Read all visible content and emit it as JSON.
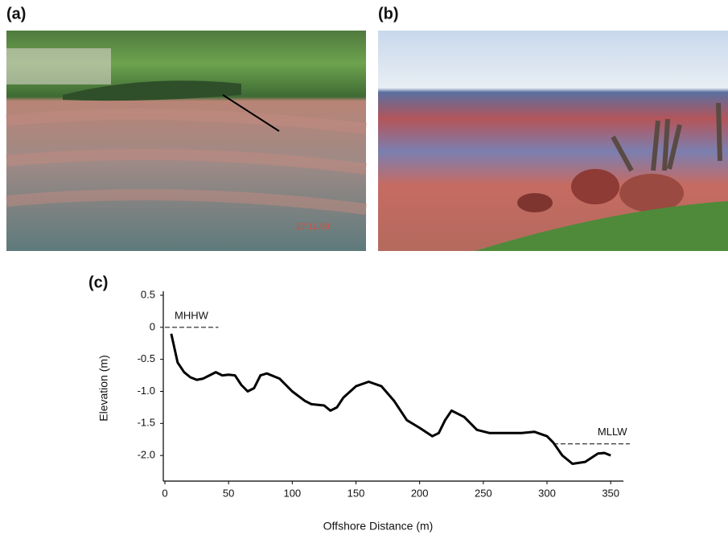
{
  "panels": {
    "a": "(a)",
    "b": "(b)",
    "c": "(c)"
  },
  "photo_a_stamp": "27.11.93",
  "chart_data": {
    "type": "line",
    "x_label": "Offshore Distance (m)",
    "y_label": "Elevation (m)",
    "x": [
      5,
      10,
      15,
      20,
      25,
      30,
      35,
      40,
      45,
      50,
      55,
      60,
      65,
      70,
      75,
      80,
      90,
      100,
      110,
      115,
      125,
      130,
      135,
      140,
      150,
      160,
      170,
      180,
      190,
      200,
      210,
      215,
      220,
      225,
      235,
      245,
      255,
      270,
      280,
      290,
      300,
      305,
      312,
      320,
      330,
      340,
      345,
      350
    ],
    "values": [
      -0.1,
      -0.55,
      -0.7,
      -0.78,
      -0.82,
      -0.8,
      -0.75,
      -0.7,
      -0.75,
      -0.74,
      -0.75,
      -0.9,
      -1.0,
      -0.95,
      -0.75,
      -0.72,
      -0.8,
      -1.0,
      -1.15,
      -1.2,
      -1.22,
      -1.3,
      -1.25,
      -1.1,
      -0.92,
      -0.85,
      -0.92,
      -1.15,
      -1.45,
      -1.57,
      -1.7,
      -1.65,
      -1.45,
      -1.3,
      -1.4,
      -1.6,
      -1.65,
      -1.65,
      -1.65,
      -1.63,
      -1.7,
      -1.8,
      -2.0,
      -2.13,
      -2.1,
      -1.97,
      -1.96,
      -2.0
    ],
    "color": "#000000",
    "xlim": [
      0,
      360
    ],
    "xticks": [
      0,
      50,
      100,
      150,
      200,
      250,
      300,
      350
    ],
    "ylim": [
      -2.4,
      0.5
    ],
    "yticks": [
      0.5,
      0,
      -0.5,
      {
        "value": -1,
        "label": "-1.0"
      },
      {
        "value": -1.5,
        "label": "-1.5"
      },
      {
        "value": -2,
        "label": "-2.0"
      }
    ],
    "reference_lines": [
      {
        "label": "MHHW",
        "y": 0,
        "x": [
          0,
          42
        ]
      },
      {
        "label": "MLLW",
        "y": -1.82,
        "x": [
          305,
          365
        ]
      }
    ]
  }
}
